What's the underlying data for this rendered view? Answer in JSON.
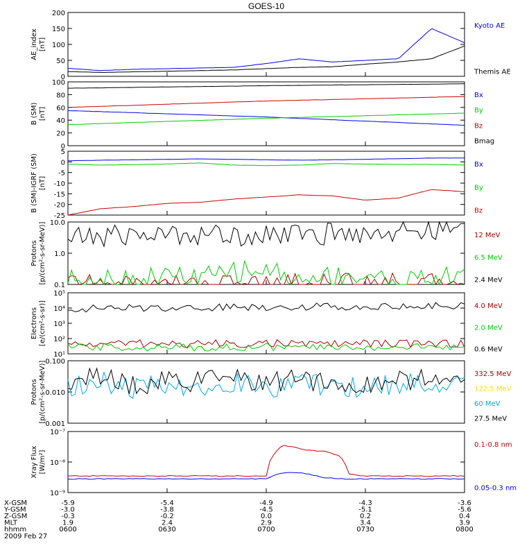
{
  "title": "GOES-10",
  "colors": {
    "black": "#000000",
    "red": "#cc0000",
    "green": "#00cc00",
    "blue": "#0000ee",
    "cyan": "#00aaee",
    "yellow": "#ffdd00",
    "darkred": "#aa0000"
  },
  "footer": {
    "rows": [
      {
        "label": "X-GSM",
        "values": [
          "-5.9",
          "-5.4",
          "-4.9",
          "-4.3",
          "-3.6"
        ]
      },
      {
        "label": "Y-GSM",
        "values": [
          "-3.0",
          "-3.8",
          "-4.5",
          "-5.1",
          "-5.6"
        ]
      },
      {
        "label": "Z-GSM",
        "values": [
          "-0.3",
          "-0.2",
          "0.0",
          "0.2",
          "0.4"
        ]
      },
      {
        "label": "MLT",
        "values": [
          "1.9",
          "2.4",
          "2.9",
          "3.4",
          "3.9"
        ]
      },
      {
        "label": "hhmm",
        "values": [
          "0600",
          "0630",
          "0700",
          "0730",
          "0800"
        ]
      }
    ],
    "date": "2009 Feb 27"
  },
  "chart_data": [
    {
      "type": "line",
      "ylabel": "AE_index\n[nT]",
      "ylim": [
        0,
        200
      ],
      "yticks": [
        "0",
        "50",
        "100",
        "150",
        "200"
      ],
      "x": [
        0,
        10,
        20,
        30,
        40,
        50,
        60,
        70,
        80,
        90,
        100,
        110,
        120
      ],
      "series": [
        {
          "name": "Kyoto AE",
          "color": "#0000ee",
          "values": [
            25,
            18,
            22,
            24,
            26,
            28,
            40,
            55,
            45,
            50,
            55,
            150,
            105
          ]
        },
        {
          "name": "Themis AE",
          "color": "#000000",
          "values": [
            15,
            12,
            14,
            16,
            18,
            20,
            24,
            28,
            30,
            38,
            45,
            55,
            95
          ]
        }
      ]
    },
    {
      "type": "line",
      "ylabel": "B (SM)\n[nT]",
      "ylim": [
        0,
        100
      ],
      "yticks": [
        "0",
        "20",
        "40",
        "60",
        "80",
        "100"
      ],
      "x": [
        0,
        60,
        120
      ],
      "series": [
        {
          "name": "Bx",
          "color": "#0000ee",
          "values": [
            55,
            45,
            32
          ]
        },
        {
          "name": "By",
          "color": "#00cc00",
          "values": [
            33,
            43,
            51
          ]
        },
        {
          "name": "Bz",
          "color": "#cc0000",
          "values": [
            60,
            70,
            77
          ]
        },
        {
          "name": "Bmag",
          "color": "#000000",
          "values": [
            90,
            94,
            97
          ]
        }
      ]
    },
    {
      "type": "line",
      "ylabel": "B (SM)-IGRF (SM)\n[nT]",
      "ylim": [
        -25,
        5
      ],
      "yticks": [
        "-25",
        "-20",
        "-15",
        "-10",
        "-5",
        "0",
        "5"
      ],
      "x": [
        0,
        10,
        20,
        30,
        40,
        50,
        60,
        70,
        80,
        90,
        100,
        110,
        120
      ],
      "series": [
        {
          "name": "Bx",
          "color": "#0000ee",
          "values": [
            0.5,
            0.8,
            1,
            1.2,
            1.4,
            1.2,
            1,
            0.8,
            1,
            1.2,
            1.5,
            1.8,
            1.8
          ]
        },
        {
          "name": "By",
          "color": "#00cc00",
          "values": [
            -1,
            -1.5,
            -1.3,
            -1,
            -0.5,
            -1.5,
            -1.7,
            -1.5,
            -0.8,
            -1,
            -1.2,
            -1.2,
            -1.5
          ]
        },
        {
          "name": "Bz",
          "color": "#cc0000",
          "values": [
            -25,
            -22,
            -21,
            -19.5,
            -19,
            -17.5,
            -16.5,
            -15.5,
            -16,
            -18,
            -17,
            -13,
            -14
          ]
        }
      ]
    },
    {
      "type": "line",
      "ylabel": "Protons\n[p/(cm²-s-sr-MeV)]",
      "ylim": [
        0.1,
        10
      ],
      "log": true,
      "yticks": [
        "0.1",
        "1.0",
        "10.0"
      ],
      "series": [
        {
          "name": "12 MeV",
          "color": "#aa0000",
          "values": [
            0.12,
            0.1,
            0.1,
            0.1,
            0.1,
            0.1,
            0.1,
            0.11,
            0.1,
            0.13,
            0.1,
            0.1,
            0.13
          ]
        },
        {
          "name": "6.5 MeV",
          "color": "#00cc00",
          "values": [
            0.15,
            0.18,
            0.12,
            0.2,
            0.15,
            0.25,
            0.3,
            0.12,
            0.2,
            0.18,
            0.12,
            0.15,
            0.2
          ]
        },
        {
          "name": "2.4 MeV",
          "color": "#000000",
          "values": [
            3,
            3.5,
            4,
            3.8,
            4.2,
            3.6,
            4.5,
            3.8,
            4.2,
            4.5,
            5,
            5.5,
            6
          ]
        }
      ]
    },
    {
      "type": "line",
      "ylabel": "Electrons\n[e/(cm²-s-sr)]",
      "ylim": [
        10,
        100000
      ],
      "log": true,
      "yticks": [
        "10¹",
        "10²",
        "10³",
        "10⁴",
        "10⁵"
      ],
      "series": [
        {
          "name": "4.0 MeV",
          "color": "#aa0000",
          "values": [
            40,
            45,
            50,
            42,
            48,
            45,
            50,
            44,
            46,
            48,
            45,
            50,
            45
          ]
        },
        {
          "name": "2.0 MeV",
          "color": "#00cc00",
          "values": [
            25,
            28,
            26,
            25,
            27,
            26,
            28,
            25,
            27,
            26,
            28,
            26,
            27
          ]
        },
        {
          "name": "0.6 MeV",
          "color": "#000000",
          "values": [
            9000,
            9500,
            10000,
            10500,
            11000,
            11500,
            12000,
            12500,
            13000,
            12500,
            13000,
            13500,
            14000
          ]
        }
      ]
    },
    {
      "type": "line",
      "ylabel": "Protons\n[p/(cm²-s-sr-MeV)]",
      "ylim": [
        0.001,
        0.1
      ],
      "log": true,
      "yticks": [
        "0.001",
        "0.010",
        "0.100"
      ],
      "series": [
        {
          "name": "332.5 MeV",
          "color": "#aa0000",
          "values": []
        },
        {
          "name": "122.5 MeV",
          "color": "#ffdd00",
          "values": []
        },
        {
          "name": "60 MeV",
          "color": "#00aaee",
          "values": [
            0.015,
            0.02,
            0.012,
            0.018,
            0.015,
            0.02,
            0.014,
            0.017,
            0.016,
            0.013,
            0.018,
            0.02,
            0.015
          ]
        },
        {
          "name": "27.5 MeV",
          "color": "#000000",
          "values": [
            0.02,
            0.03,
            0.015,
            0.025,
            0.02,
            0.028,
            0.018,
            0.025,
            0.02,
            0.017,
            0.024,
            0.03,
            0.02
          ]
        }
      ]
    },
    {
      "type": "line",
      "ylabel": "Xray Flux\n[W/m²]",
      "ylim": [
        1e-09,
        1e-07
      ],
      "log": true,
      "yticks": [
        "10⁻⁹",
        "10⁻⁸",
        "10⁻⁷"
      ],
      "x": [
        0,
        60,
        65,
        68,
        72,
        78,
        82,
        85,
        90,
        120
      ],
      "series": [
        {
          "name": "0.1-0.8 nm",
          "color": "#cc0000",
          "values": [
            3.5e-09,
            3.5e-09,
            3.5e-08,
            3.2e-08,
            2.5e-08,
            2.2e-08,
            1.6e-08,
            4e-09,
            3.5e-09,
            3.5e-09
          ]
        },
        {
          "name": "0.05-0.3 nm",
          "color": "#0000ee",
          "values": [
            2.8e-09,
            2.8e-09,
            4.5e-09,
            4.5e-09,
            4.2e-09,
            3e-09,
            2.9e-09,
            2.8e-09,
            2.8e-09,
            2.8e-09
          ]
        }
      ]
    }
  ]
}
